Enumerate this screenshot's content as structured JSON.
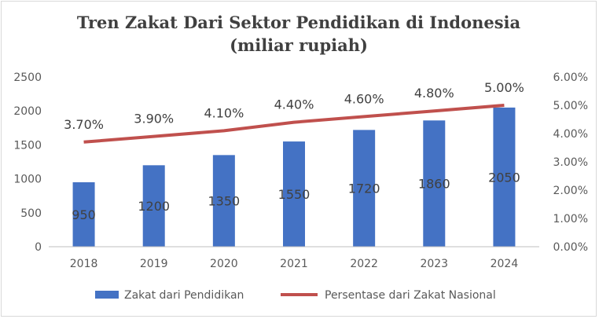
{
  "chart_data": {
    "type": "bar",
    "title_line1": "Tren Zakat Dari Sektor Pendidikan di Indonesia",
    "title_line2": "(miliar rupiah)",
    "categories": [
      "2018",
      "2019",
      "2020",
      "2021",
      "2022",
      "2023",
      "2024"
    ],
    "series": [
      {
        "name": "Zakat dari Pendidikan",
        "type": "bar",
        "axis": "left",
        "values": [
          950,
          1200,
          1350,
          1550,
          1720,
          1860,
          2050
        ],
        "labels": [
          "950",
          "1200",
          "1350",
          "1550",
          "1720",
          "1860",
          "2050"
        ],
        "color": "#4472c4"
      },
      {
        "name": "Persentase dari Zakat Nasional",
        "type": "line",
        "axis": "right",
        "values": [
          3.7,
          3.9,
          4.1,
          4.4,
          4.6,
          4.8,
          5.0
        ],
        "labels": [
          "3.70%",
          "3.90%",
          "4.10%",
          "4.40%",
          "4.60%",
          "4.80%",
          "5.00%"
        ],
        "color": "#c0504d"
      }
    ],
    "ylim_left": [
      0,
      2500
    ],
    "yticks_left": [
      "0",
      "500",
      "1000",
      "1500",
      "2000",
      "2500"
    ],
    "ylim_right": [
      0,
      6
    ],
    "yticks_right": [
      "0.00%",
      "1.00%",
      "2.00%",
      "3.00%",
      "4.00%",
      "5.00%",
      "6.00%"
    ],
    "grid": false,
    "legend_position": "bottom"
  }
}
